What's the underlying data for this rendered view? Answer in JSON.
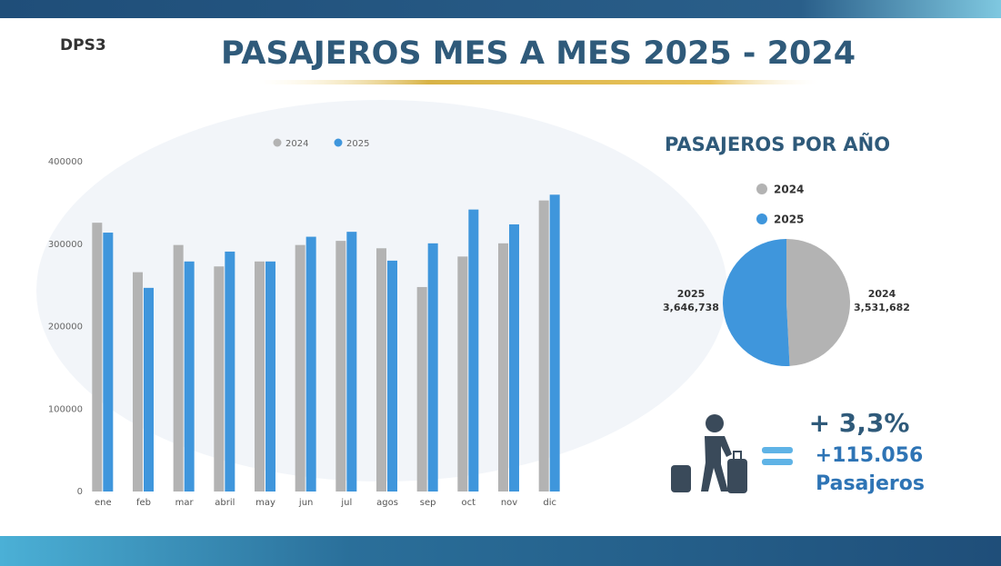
{
  "logo": "DPS3",
  "title": "PASAJEROS MES A MES 2025 - 2024",
  "chart_data": [
    {
      "type": "bar",
      "categories": [
        "ene",
        "feb",
        "mar",
        "abril",
        "may",
        "jun",
        "jul",
        "agos",
        "sep",
        "oct",
        "nov",
        "dic"
      ],
      "series": [
        {
          "name": "2024",
          "color": "#b3b3b3",
          "values": [
            326000,
            266000,
            299000,
            273000,
            279000,
            299000,
            304000,
            295000,
            248000,
            285000,
            301000,
            353000
          ]
        },
        {
          "name": "2025",
          "color": "#3f96dc",
          "values": [
            314000,
            247000,
            279000,
            291000,
            279000,
            309000,
            315000,
            280000,
            301000,
            342000,
            324000,
            360000
          ]
        }
      ],
      "ylim": [
        0,
        400000
      ],
      "yticks": [
        0,
        100000,
        200000,
        300000,
        400000
      ],
      "grid": false,
      "legend": "top"
    },
    {
      "type": "pie",
      "title": "PASAJEROS POR AÑO",
      "categories": [
        "2024",
        "2025"
      ],
      "values": [
        3531682,
        3646738
      ],
      "value_labels": [
        "3,531,682",
        "3,646,738"
      ],
      "colors": [
        "#b3b3b3",
        "#3f96dc"
      ],
      "legend": "top"
    }
  ],
  "summary": {
    "percent": "+ 3,3%",
    "count": "+115.056",
    "unit": "Pasajeros"
  }
}
